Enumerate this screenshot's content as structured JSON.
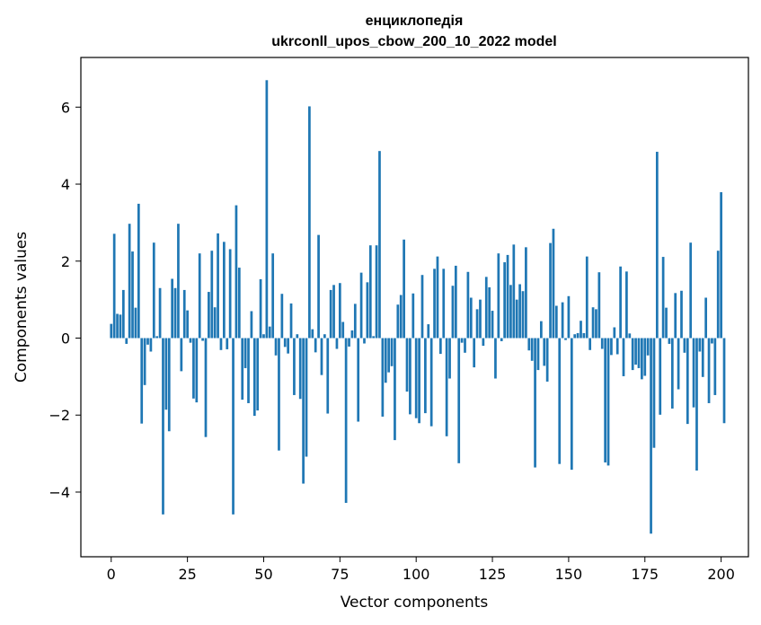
{
  "chart_data": {
    "type": "bar",
    "title_line1": "енциклопедія",
    "title_line2": "ukrconll_upos_cbow_200_10_2022 model",
    "xlabel": "Vector components",
    "ylabel": "Components values",
    "xlim": [
      -9.95,
      208.95
    ],
    "ylim": [
      -5.68,
      7.29
    ],
    "xticks": [
      0,
      25,
      50,
      75,
      100,
      125,
      150,
      175,
      200
    ],
    "yticks": [
      -4,
      -2,
      0,
      2,
      4,
      6
    ],
    "ytick_labels": [
      "−4",
      "−2",
      "0",
      "2",
      "4",
      "6"
    ],
    "bar_color": "#1f77b4",
    "grid": false,
    "values": [
      0.37,
      2.71,
      0.63,
      0.61,
      1.25,
      -0.15,
      2.97,
      2.25,
      0.79,
      3.49,
      -2.22,
      -1.22,
      -0.17,
      -0.35,
      2.48,
      0.05,
      1.3,
      -4.58,
      -1.86,
      -2.42,
      1.54,
      1.3,
      2.97,
      -0.86,
      1.25,
      0.72,
      -0.12,
      -1.57,
      -1.67,
      2.2,
      -0.07,
      -2.57,
      1.2,
      2.27,
      0.8,
      2.72,
      -0.31,
      2.5,
      -0.29,
      2.31,
      -4.58,
      3.45,
      1.83,
      -1.6,
      -0.78,
      -1.69,
      0.7,
      -2.02,
      -1.88,
      1.53,
      0.1,
      6.7,
      0.3,
      2.2,
      -0.45,
      -2.92,
      1.15,
      -0.23,
      -0.4,
      0.9,
      -1.48,
      0.1,
      -1.58,
      -3.78,
      -3.08,
      6.02,
      0.23,
      -0.37,
      2.68,
      -0.96,
      0.1,
      -1.96,
      1.25,
      1.38,
      -0.28,
      1.43,
      0.42,
      -4.28,
      -0.22,
      0.2,
      0.89,
      -2.17,
      1.7,
      -0.14,
      1.45,
      2.41,
      0.05,
      2.41,
      4.86,
      -2.04,
      -1.16,
      -0.89,
      -0.73,
      -2.65,
      0.87,
      1.12,
      2.56,
      -1.39,
      -1.98,
      1.16,
      -2.08,
      -2.21,
      1.64,
      -1.95,
      0.36,
      -2.29,
      1.8,
      2.12,
      -0.41,
      1.8,
      -2.55,
      -1.05,
      1.36,
      1.88,
      -3.25,
      -0.12,
      -0.38,
      1.72,
      1.05,
      -0.76,
      0.75,
      1.0,
      -0.2,
      1.59,
      1.32,
      0.71,
      -1.05,
      2.2,
      -0.08,
      1.97,
      2.16,
      1.38,
      2.43,
      1.0,
      1.4,
      1.22,
      2.36,
      -0.32,
      -0.59,
      -3.36,
      -0.83,
      0.44,
      -0.72,
      -1.13,
      2.47,
      2.84,
      0.84,
      -3.27,
      0.93,
      -0.05,
      1.09,
      -3.42,
      0.1,
      0.13,
      0.45,
      0.13,
      2.12,
      -0.31,
      0.8,
      0.75,
      1.71,
      -0.28,
      -3.23,
      -3.31,
      -0.44,
      0.28,
      -0.42,
      1.86,
      -0.99,
      1.73,
      0.12,
      -0.83,
      -0.69,
      -0.78,
      -1.07,
      -0.98,
      -0.45,
      -5.08,
      -2.85,
      4.84,
      -1.99,
      2.11,
      0.79,
      -0.15,
      -1.83,
      1.17,
      -1.33,
      1.23,
      -0.38,
      -2.23,
      2.48,
      -1.8,
      -3.44,
      -0.35,
      -1.01,
      1.05,
      -1.69,
      -0.14,
      -1.48,
      2.27,
      3.79,
      -2.21
    ]
  }
}
